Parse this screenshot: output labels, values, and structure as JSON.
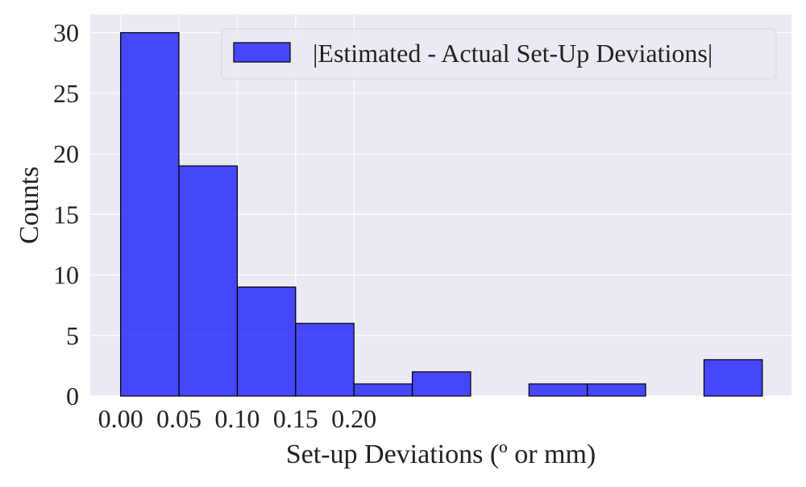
{
  "chart_data": {
    "type": "bar",
    "title": "",
    "xlabel": "Set-up Deviations (º or mm)",
    "ylabel": "Counts",
    "bin_width": 0.05,
    "x": [
      0.0,
      0.05,
      0.1,
      0.15,
      0.2,
      0.25,
      0.3,
      0.35,
      0.4,
      0.45,
      0.5
    ],
    "values": [
      30,
      19,
      9,
      6,
      1,
      2,
      0,
      1,
      1,
      0,
      3
    ],
    "series": [
      {
        "name": "|Estimated - Actual Set-Up Deviations|",
        "values": [
          30,
          19,
          9,
          6,
          1,
          2,
          0,
          1,
          1,
          0,
          3
        ]
      }
    ],
    "xticks": [
      "0.00",
      "0.05",
      "0.10",
      "0.15",
      "0.20"
    ],
    "yticks": [
      "0",
      "5",
      "10",
      "15",
      "20",
      "25",
      "30"
    ],
    "xlim": [
      -0.026,
      0.575
    ],
    "ylim": [
      0,
      31.5
    ],
    "grid": true,
    "legend_position": "top-right",
    "colors": {
      "bar_fill": "#0000ff",
      "bar_opacity": "0.7",
      "bar_edge": "#000000",
      "plot_background": "#eaeaf2",
      "grid": "#ffffff"
    }
  }
}
